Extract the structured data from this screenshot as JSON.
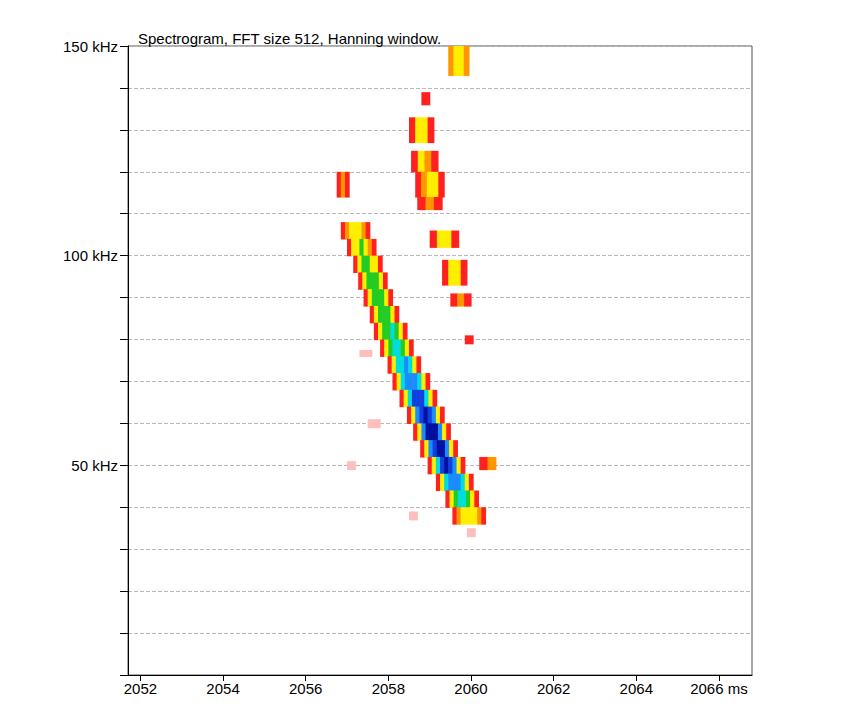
{
  "chart_data": {
    "type": "heatmap",
    "title": "Spectrogram, FFT size 512, Hanning window.",
    "xlim": [
      2051.7,
      2066.8
    ],
    "xticks": [
      2052,
      2054,
      2056,
      2058,
      2060,
      2062,
      2064,
      {
        "value": 2066,
        "label": "2066 ms"
      }
    ],
    "ylim": [
      0,
      150
    ],
    "yticks": [
      {
        "value": 50,
        "label": "50 kHz"
      },
      {
        "value": 100,
        "label": "100 kHz"
      },
      {
        "value": 150,
        "label": "150 kHz"
      }
    ],
    "yminor": [
      0,
      10,
      20,
      30,
      40,
      50,
      60,
      70,
      80,
      90,
      100,
      110,
      120,
      130,
      140,
      150
    ],
    "grid": true,
    "zlim": [
      0,
      8
    ],
    "cells": [
      {
        "freq": [
          104,
          108
        ],
        "time": [
          2056.85,
          2057.55
        ],
        "levels": [
          1,
          2,
          3,
          3,
          3,
          2,
          1
        ]
      },
      {
        "freq": [
          100,
          104
        ],
        "time": [
          2057.0,
          2057.7
        ],
        "levels": [
          1,
          3,
          3,
          4,
          3,
          2,
          1
        ]
      },
      {
        "freq": [
          96,
          100
        ],
        "time": [
          2057.15,
          2057.85
        ],
        "levels": [
          1,
          3,
          4,
          4,
          3,
          3,
          1
        ]
      },
      {
        "freq": [
          92,
          96
        ],
        "time": [
          2057.27,
          2057.97
        ],
        "levels": [
          1,
          3,
          4,
          4,
          4,
          3,
          1
        ]
      },
      {
        "freq": [
          88,
          92
        ],
        "time": [
          2057.4,
          2058.1
        ],
        "levels": [
          1,
          3,
          4,
          4,
          4,
          3,
          1
        ]
      },
      {
        "freq": [
          84,
          88
        ],
        "time": [
          2057.55,
          2058.25
        ],
        "levels": [
          1,
          3,
          4,
          4,
          4,
          3,
          1
        ]
      },
      {
        "freq": [
          80,
          84
        ],
        "time": [
          2057.65,
          2058.45
        ],
        "levels": [
          1,
          3,
          4,
          4,
          5,
          4,
          3,
          1
        ]
      },
      {
        "freq": [
          76,
          80
        ],
        "time": [
          2057.8,
          2058.6
        ],
        "levels": [
          1,
          3,
          4,
          5,
          5,
          4,
          3,
          1
        ]
      },
      {
        "freq": [
          72,
          76
        ],
        "time": [
          2057.98,
          2058.78
        ],
        "levels": [
          1,
          3,
          5,
          5,
          6,
          5,
          3,
          1
        ]
      },
      {
        "freq": [
          68,
          72
        ],
        "time": [
          2058.1,
          2059.0
        ],
        "levels": [
          1,
          3,
          5,
          6,
          6,
          6,
          5,
          3,
          1
        ]
      },
      {
        "freq": [
          64,
          68
        ],
        "time": [
          2058.27,
          2059.17
        ],
        "levels": [
          1,
          3,
          5,
          7,
          7,
          7,
          5,
          3,
          1
        ]
      },
      {
        "freq": [
          60,
          64
        ],
        "time": [
          2058.45,
          2059.35
        ],
        "levels": [
          1,
          3,
          6,
          7,
          8,
          7,
          6,
          3,
          1
        ]
      },
      {
        "freq": [
          56,
          60
        ],
        "time": [
          2058.6,
          2059.5
        ],
        "levels": [
          1,
          3,
          6,
          8,
          8,
          8,
          6,
          3,
          1
        ]
      },
      {
        "freq": [
          52,
          56
        ],
        "time": [
          2058.77,
          2059.67
        ],
        "levels": [
          1,
          3,
          6,
          7,
          8,
          8,
          6,
          3,
          1
        ]
      },
      {
        "freq": [
          48,
          52
        ],
        "time": [
          2058.95,
          2059.85
        ],
        "levels": [
          1,
          3,
          5,
          7,
          8,
          7,
          6,
          3,
          1
        ]
      },
      {
        "freq": [
          44,
          48
        ],
        "time": [
          2059.15,
          2060.05
        ],
        "levels": [
          1,
          3,
          5,
          6,
          6,
          6,
          5,
          3,
          1
        ]
      },
      {
        "freq": [
          40,
          44
        ],
        "time": [
          2059.38,
          2060.18
        ],
        "levels": [
          1,
          3,
          4,
          5,
          5,
          4,
          3,
          1
        ]
      },
      {
        "freq": [
          36,
          40
        ],
        "time": [
          2059.55,
          2060.35
        ],
        "levels": [
          1,
          2,
          3,
          3,
          3,
          3,
          2,
          1
        ]
      },
      {
        "freq": [
          114,
          120
        ],
        "time": [
          2056.75,
          2057.05
        ],
        "levels": [
          1,
          2,
          1
        ]
      },
      {
        "freq": [
          143,
          150
        ],
        "time": [
          2059.45,
          2059.95
        ],
        "levels": [
          2,
          3,
          3,
          2
        ]
      },
      {
        "freq": [
          136,
          139
        ],
        "time": [
          2058.8,
          2059.0
        ],
        "levels": [
          1
        ]
      },
      {
        "freq": [
          127,
          133
        ],
        "time": [
          2058.5,
          2059.1
        ],
        "levels": [
          1,
          3,
          3,
          1
        ]
      },
      {
        "freq": [
          120,
          125
        ],
        "time": [
          2058.55,
          2059.2
        ],
        "levels": [
          1,
          3,
          2,
          1
        ]
      },
      {
        "freq": [
          114,
          120
        ],
        "time": [
          2058.65,
          2059.35
        ],
        "levels": [
          1,
          2,
          3,
          3,
          1
        ]
      },
      {
        "freq": [
          111,
          114
        ],
        "time": [
          2058.7,
          2059.3
        ],
        "levels": [
          1,
          2,
          1
        ]
      },
      {
        "freq": [
          102,
          106
        ],
        "time": [
          2059.0,
          2059.7
        ],
        "levels": [
          1,
          3,
          3,
          1
        ]
      },
      {
        "freq": [
          93,
          99
        ],
        "time": [
          2059.3,
          2059.9
        ],
        "levels": [
          1,
          3,
          3,
          1
        ]
      },
      {
        "freq": [
          88,
          91
        ],
        "time": [
          2059.5,
          2060.0
        ],
        "levels": [
          1,
          2,
          1
        ]
      },
      {
        "freq": [
          79,
          81
        ],
        "time": [
          2059.85,
          2060.05
        ],
        "levels": [
          1
        ]
      },
      {
        "freq": [
          49,
          52
        ],
        "time": [
          2060.2,
          2060.6
        ],
        "levels": [
          1,
          2
        ]
      },
      {
        "freq": [
          76,
          77.5
        ],
        "time": [
          2057.3,
          2057.6
        ],
        "levels": [
          0.5
        ]
      },
      {
        "freq": [
          59,
          61
        ],
        "time": [
          2057.5,
          2057.8
        ],
        "levels": [
          0.5
        ]
      },
      {
        "freq": [
          49,
          51
        ],
        "time": [
          2057.0,
          2057.2
        ],
        "levels": [
          0.5
        ]
      },
      {
        "freq": [
          37,
          39
        ],
        "time": [
          2058.5,
          2058.7
        ],
        "levels": [
          0.5
        ]
      },
      {
        "freq": [
          33,
          35
        ],
        "time": [
          2059.9,
          2060.1
        ],
        "levels": [
          0.5
        ]
      }
    ]
  }
}
